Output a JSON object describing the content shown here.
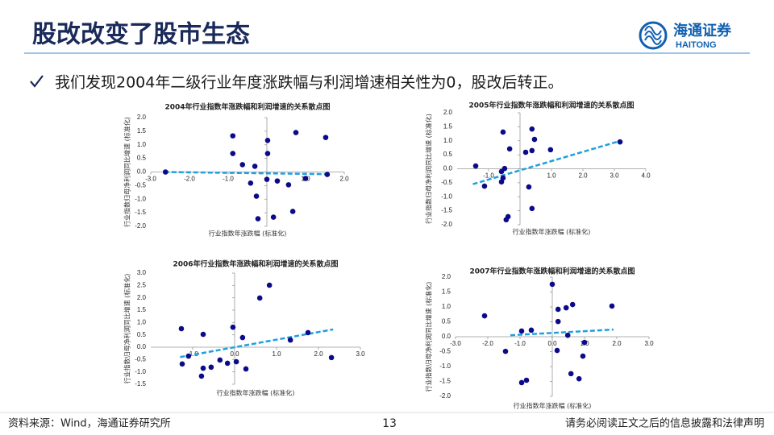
{
  "header": {
    "title": "股改改变了股市生态",
    "logo_cn": "海通证券",
    "logo_en": "HAITONG"
  },
  "bullet": "我们发现2004年二级行业年度涨跌幅与利润增速相关性为0，股改后转正。",
  "chart_data": [
    {
      "type": "scatter",
      "title": "2004年行业指数年涨跌幅和利润增速的关系散点图",
      "x_label": "行业指数年涨跌幅 (标准化)",
      "y_label": "行业指数归母净利润同比增速 (标准化)",
      "color": "#0b0b8a",
      "trend_color": "#1ea0e0",
      "xlim": [
        -3,
        2
      ],
      "ylim": [
        -2,
        2
      ],
      "xticks": [
        {
          "value": -3,
          "label": "-3.0"
        },
        {
          "value": -2,
          "label": "-2.0"
        },
        {
          "value": -1,
          "label": "-1.0"
        },
        {
          "value": 1,
          "label": "1.0"
        },
        {
          "value": 2,
          "label": "2.0"
        }
      ],
      "yticks": [
        {
          "value": 2,
          "label": "2.0"
        },
        1.5,
        {
          "value": 1,
          "label": "1.0"
        },
        0.5,
        {
          "value": 0,
          "label": "0.0"
        },
        -0.5,
        {
          "value": -1,
          "label": "-1.0"
        },
        -1.5,
        {
          "value": -2,
          "label": "-2.0"
        }
      ],
      "x": [
        -2.62,
        -0.88,
        -0.88,
        -0.63,
        -0.31,
        -0.42,
        -0.27,
        -0.23,
        0.02,
        0.02,
        0.0,
        0.17,
        0.27,
        0.56,
        0.75,
        0.67,
        1.0,
        1.52,
        1.56
      ],
      "y": [
        0.0,
        1.33,
        0.68,
        0.27,
        0.21,
        -0.41,
        -0.89,
        -1.72,
        1.16,
        0.68,
        -0.27,
        -1.66,
        -0.33,
        -0.47,
        1.45,
        -1.45,
        -0.24,
        1.27,
        -0.09
      ],
      "trendline": {
        "x": [
          -2.65,
          1.6
        ],
        "y": [
          0.0,
          -0.08
        ]
      }
    },
    {
      "type": "scatter",
      "title": "2005年行业指数年涨跌幅和利润增速的关系散点图",
      "x_label": "行业指数年涨跌幅 (标准化)",
      "y_label": "行业指数归母净利润同比增速 (标准化)",
      "color": "#0b0b8a",
      "trend_color": "#1ea0e0",
      "xlim": [
        -2,
        4
      ],
      "ylim": [
        -2,
        2
      ],
      "xticks": [
        {
          "value": -1,
          "label": "-1.0"
        },
        {
          "value": 1,
          "label": "1.0"
        },
        {
          "value": 2,
          "label": "2.0"
        },
        {
          "value": 3,
          "label": "3.0"
        },
        {
          "value": 4,
          "label": "4.0"
        }
      ],
      "yticks": [
        {
          "value": 2,
          "label": "2.0"
        },
        1.5,
        {
          "value": 1,
          "label": "1.0"
        },
        0.5,
        {
          "value": 0,
          "label": "0.0"
        },
        -0.5,
        {
          "value": -1,
          "label": "-1.0"
        },
        -1.5,
        {
          "value": -2,
          "label": "-2.0"
        }
      ],
      "x": [
        -1.41,
        -1.13,
        -0.54,
        -0.59,
        -0.54,
        -0.59,
        -0.49,
        -0.33,
        -0.38,
        -0.44,
        0.18,
        0.28,
        0.38,
        0.38,
        0.46,
        0.38,
        0.97,
        3.18
      ],
      "y": [
        0.1,
        -0.62,
        1.31,
        -0.47,
        -0.33,
        -0.1,
        0.01,
        0.71,
        -1.71,
        -1.82,
        0.59,
        -0.65,
        1.42,
        0.65,
        1.05,
        -1.42,
        0.68,
        0.96
      ],
      "trendline": {
        "x": [
          -1.5,
          3.2
        ],
        "y": [
          -0.55,
          1.0
        ]
      }
    },
    {
      "type": "scatter",
      "title": "2006年行业指数年涨跌幅和利润增速的关系散点图",
      "x_label": "行业指数年涨跌幅 (标准化)",
      "y_label": "行业指数归母净利润同比增速 (标准化)",
      "color": "#0b0b8a",
      "trend_color": "#1ea0e0",
      "xlim": [
        -2,
        3
      ],
      "ylim": [
        -1.5,
        3
      ],
      "xticks": [
        {
          "value": -1,
          "label": "-1.0"
        },
        {
          "value": 0,
          "label": "0.0"
        },
        {
          "value": 1,
          "label": "1.0"
        },
        {
          "value": 2,
          "label": "2.0"
        },
        {
          "value": 3,
          "label": "3.0"
        }
      ],
      "yticks": [
        {
          "value": 3,
          "label": "3.0"
        },
        2.5,
        {
          "value": 2,
          "label": "2.0"
        },
        1.5,
        {
          "value": 1,
          "label": "1.0"
        },
        0.5,
        {
          "value": 0,
          "label": "0.0"
        },
        -0.5,
        {
          "value": -1,
          "label": "-1.0"
        },
        -1.5
      ],
      "x": [
        -1.27,
        -1.25,
        -1.1,
        -0.75,
        -0.75,
        -0.79,
        -0.56,
        -0.35,
        -0.17,
        -0.04,
        0.04,
        0.19,
        0.27,
        0.6,
        0.83,
        1.33,
        1.75,
        2.31
      ],
      "y": [
        0.75,
        -0.68,
        -0.36,
        0.52,
        -0.85,
        -1.17,
        -0.81,
        -0.52,
        -0.65,
        0.81,
        -0.59,
        0.39,
        -0.88,
        1.99,
        2.51,
        0.29,
        0.59,
        -0.42
      ],
      "trendline": {
        "x": [
          -1.3,
          2.35
        ],
        "y": [
          -0.4,
          0.72
        ]
      }
    },
    {
      "type": "scatter",
      "title": "2007年行业指数年涨跌幅和利润增速的关系散点图",
      "x_label": "行业指数年涨跌幅 (标准化)",
      "y_label": "行业指数归母净利润同比增速 (标准化)",
      "color": "#0b0b8a",
      "trend_color": "#1ea0e0",
      "xlim": [
        -3,
        3
      ],
      "ylim": [
        -2,
        2
      ],
      "xticks": [
        {
          "value": -3,
          "label": "-3.0"
        },
        {
          "value": -2,
          "label": "-2.0"
        },
        {
          "value": -1,
          "label": "-1.0"
        },
        {
          "value": 0,
          "label": "0.0"
        },
        {
          "value": 1,
          "label": "1.0"
        },
        {
          "value": 2,
          "label": "2.0"
        },
        {
          "value": 3,
          "label": "3.0"
        }
      ],
      "yticks": [
        {
          "value": 2,
          "label": "2.0"
        },
        1.5,
        {
          "value": 1,
          "label": "1.0"
        },
        0.5,
        {
          "value": 0,
          "label": "0.0"
        },
        -0.5,
        {
          "value": -1,
          "label": "-1.0"
        },
        -1.5,
        {
          "value": -2,
          "label": "-2.0"
        }
      ],
      "x": [
        -2.1,
        -1.45,
        -0.95,
        -0.65,
        -0.95,
        -0.8,
        0.0,
        0.18,
        0.18,
        0.15,
        0.43,
        0.63,
        0.48,
        0.58,
        0.83,
        0.95,
        1.0,
        1.85
      ],
      "y": [
        0.7,
        -0.49,
        0.19,
        0.22,
        -1.54,
        -1.46,
        1.76,
        0.92,
        0.51,
        -0.46,
        0.97,
        1.08,
        0.05,
        -1.24,
        -1.41,
        -0.65,
        -0.19,
        1.03
      ],
      "trendline": {
        "x": [
          -1.3,
          1.9
        ],
        "y": [
          0.05,
          0.24
        ]
      }
    }
  ],
  "footer": {
    "source": "资料来源：Wind，海通证券研究所",
    "page": "13",
    "disclaimer": "请务必阅读正文之后的信息披露和法律声明"
  }
}
